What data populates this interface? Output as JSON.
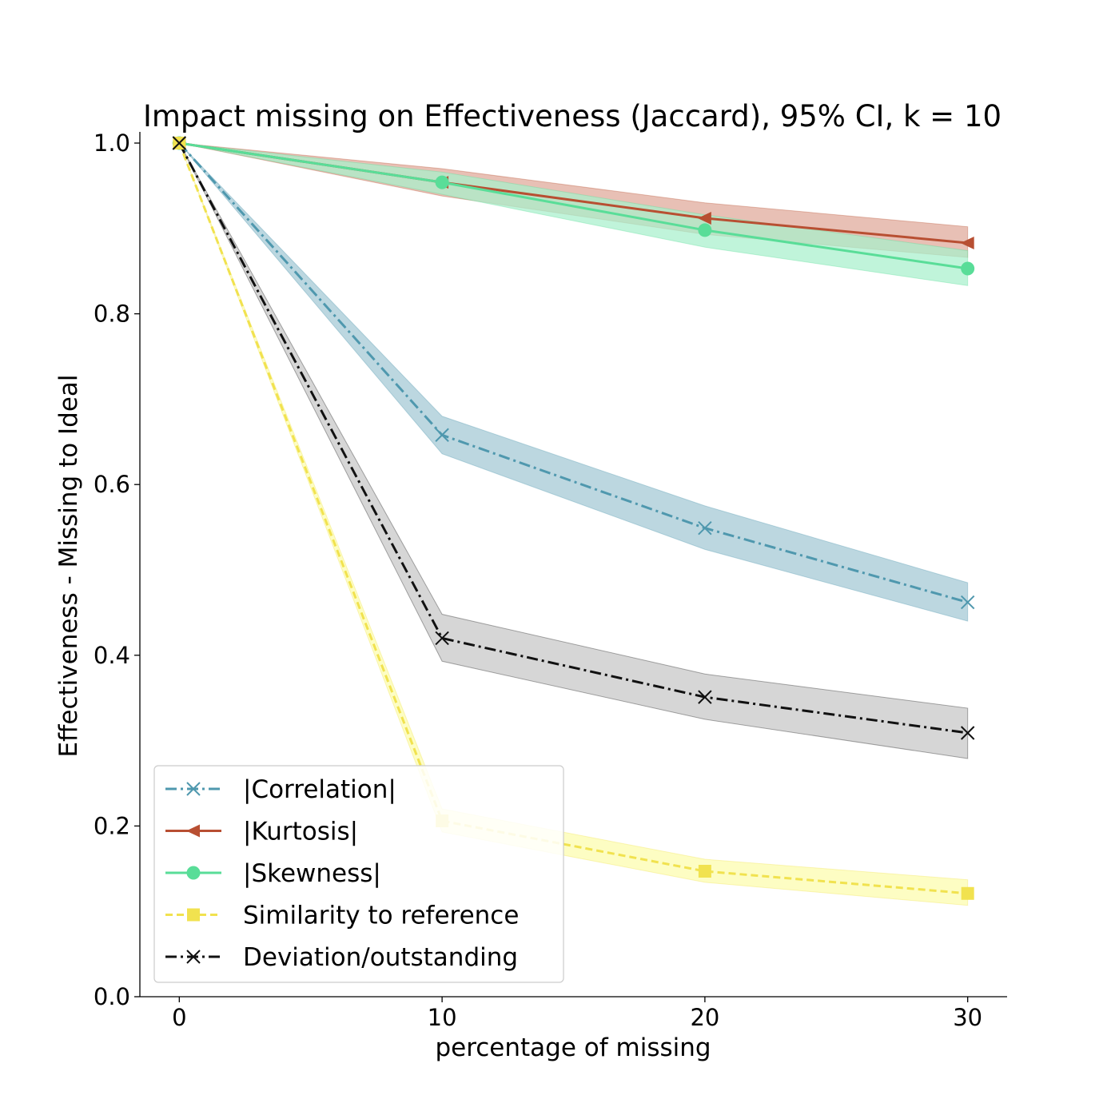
{
  "chart_data": {
    "type": "line",
    "title": "Impact missing on Effectiveness (Jaccard), 95% CI, k = 10",
    "xlabel": "percentage of missing",
    "ylabel": "Effectiveness - Missing to Ideal",
    "x": [
      0,
      10,
      20,
      30
    ],
    "xticks": [
      0,
      10,
      20,
      30
    ],
    "xlim": [
      -1.5,
      31.5
    ],
    "ylim": [
      0,
      1.0
    ],
    "yticks": [
      0.0,
      0.2,
      0.4,
      0.6,
      0.8,
      1.0
    ],
    "ytick_labels": [
      "0.0",
      "0.2",
      "0.4",
      "0.6",
      "0.8",
      "1.0"
    ],
    "grid": false,
    "legend": "bottom-left",
    "series": [
      {
        "name": "|Correlation|",
        "values": [
          1.0,
          0.658,
          0.549,
          0.462
        ],
        "ci_low": [
          1.0,
          0.636,
          0.524,
          0.44
        ],
        "ci_high": [
          1.0,
          0.68,
          0.575,
          0.485
        ],
        "color": "#4f98ae",
        "fill": "#a2c8d4",
        "line": "dashdot",
        "marker": "x"
      },
      {
        "name": "|Kurtosis|",
        "values": [
          1.0,
          0.954,
          0.912,
          0.883
        ],
        "ci_low": [
          1.0,
          0.938,
          0.893,
          0.866
        ],
        "ci_high": [
          1.0,
          0.97,
          0.93,
          0.902
        ],
        "color": "#b84f32",
        "fill": "#dfa898",
        "line": "solid",
        "marker": "triangle-left"
      },
      {
        "name": "|Skewness|",
        "values": [
          1.0,
          0.954,
          0.898,
          0.853
        ],
        "ci_low": [
          1.0,
          0.94,
          0.878,
          0.833
        ],
        "ci_high": [
          1.0,
          0.966,
          0.916,
          0.874
        ],
        "color": "#59dd98",
        "fill": "#a8f0cc",
        "line": "solid",
        "marker": "circle"
      },
      {
        "name": "Similarity to reference",
        "values": [
          1.0,
          0.206,
          0.147,
          0.121
        ],
        "ci_low": [
          1.0,
          0.193,
          0.134,
          0.107
        ],
        "ci_high": [
          1.0,
          0.22,
          0.161,
          0.137
        ],
        "color": "#f1e24f",
        "fill": "#fcfcac",
        "line": "dashed",
        "marker": "square"
      },
      {
        "name": "Deviation/outstanding",
        "values": [
          1.0,
          0.42,
          0.351,
          0.309
        ],
        "ci_low": [
          1.0,
          0.393,
          0.325,
          0.279
        ],
        "ci_high": [
          1.0,
          0.448,
          0.378,
          0.338
        ],
        "color": "#111111",
        "fill": "#c6c6c6",
        "line": "dashdot",
        "marker": "x"
      }
    ]
  }
}
